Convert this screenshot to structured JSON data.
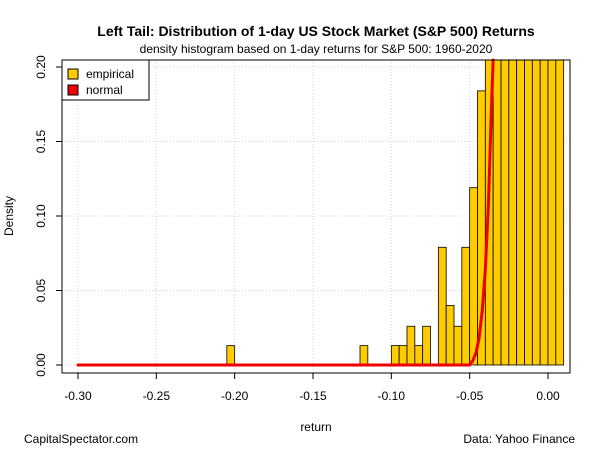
{
  "chart_data": {
    "type": "bar",
    "title": "Left Tail: Distribution of 1-day US Stock Market (S&P 500) Returns",
    "subtitle": "density histogram based on 1-day returns for S&P 500: 1960-2020",
    "xlabel": "return",
    "ylabel": "Density",
    "xlim": [
      -0.3,
      0.01
    ],
    "ylim": [
      0,
      0.2
    ],
    "x_ticks": [
      {
        "value": -0.3,
        "label": "-0.30"
      },
      {
        "value": -0.25,
        "label": "-0.25"
      },
      {
        "value": -0.2,
        "label": "-0.20"
      },
      {
        "value": -0.15,
        "label": "-0.15"
      },
      {
        "value": -0.1,
        "label": "-0.10"
      },
      {
        "value": -0.05,
        "label": "-0.05"
      },
      {
        "value": 0.0,
        "label": "0.00"
      }
    ],
    "y_ticks": [
      {
        "value": 0.0,
        "label": "0.00"
      },
      {
        "value": 0.05,
        "label": "0.05"
      },
      {
        "value": 0.1,
        "label": "0.10"
      },
      {
        "value": 0.15,
        "label": "0.15"
      },
      {
        "value": 0.2,
        "label": "0.20"
      }
    ],
    "grid": true,
    "legend": {
      "position": "top-left",
      "entries": [
        {
          "label": "empirical",
          "color": "#ffcc00"
        },
        {
          "label": "normal",
          "color": "#ee0000"
        }
      ]
    },
    "bin_width": 0.005,
    "series": [
      {
        "name": "empirical",
        "type": "histogram",
        "color": "#ffcc00",
        "bins": [
          {
            "x0": -0.205,
            "x1": -0.2,
            "density": 0.013
          },
          {
            "x0": -0.12,
            "x1": -0.115,
            "density": 0.013
          },
          {
            "x0": -0.1,
            "x1": -0.095,
            "density": 0.013
          },
          {
            "x0": -0.095,
            "x1": -0.09,
            "density": 0.013
          },
          {
            "x0": -0.09,
            "x1": -0.085,
            "density": 0.026
          },
          {
            "x0": -0.085,
            "x1": -0.08,
            "density": 0.013
          },
          {
            "x0": -0.08,
            "x1": -0.075,
            "density": 0.026
          },
          {
            "x0": -0.07,
            "x1": -0.065,
            "density": 0.079
          },
          {
            "x0": -0.065,
            "x1": -0.06,
            "density": 0.04
          },
          {
            "x0": -0.06,
            "x1": -0.055,
            "density": 0.026
          },
          {
            "x0": -0.055,
            "x1": -0.05,
            "density": 0.079
          },
          {
            "x0": -0.05,
            "x1": -0.045,
            "density": 0.119
          },
          {
            "x0": -0.045,
            "x1": -0.04,
            "density": 0.184
          },
          {
            "x0": -0.04,
            "x1": -0.035,
            "density": 0.208
          },
          {
            "x0": -0.035,
            "x1": -0.03,
            "density": 0.208
          },
          {
            "x0": -0.03,
            "x1": -0.025,
            "density": 0.208
          },
          {
            "x0": -0.025,
            "x1": -0.02,
            "density": 0.208
          },
          {
            "x0": -0.02,
            "x1": -0.015,
            "density": 0.208
          },
          {
            "x0": -0.015,
            "x1": -0.01,
            "density": 0.208
          },
          {
            "x0": -0.01,
            "x1": -0.005,
            "density": 0.208
          },
          {
            "x0": -0.005,
            "x1": 0.0,
            "density": 0.208
          },
          {
            "x0": 0.0,
            "x1": 0.005,
            "density": 0.208
          },
          {
            "x0": 0.005,
            "x1": 0.01,
            "density": 0.208
          }
        ]
      },
      {
        "name": "normal",
        "type": "line",
        "color": "#ee0000",
        "x": [
          -0.3,
          -0.2,
          -0.1,
          -0.06,
          -0.05,
          -0.048,
          -0.046,
          -0.044,
          -0.042,
          -0.04,
          -0.038,
          -0.036,
          -0.035
        ],
        "y": [
          0.0,
          0.0,
          0.0,
          0.0,
          0.0,
          0.003,
          0.008,
          0.018,
          0.036,
          0.064,
          0.109,
          0.176,
          0.21
        ]
      }
    ]
  },
  "footer": {
    "left": "CapitalSpectator.com",
    "right": "Data: Yahoo Finance"
  }
}
